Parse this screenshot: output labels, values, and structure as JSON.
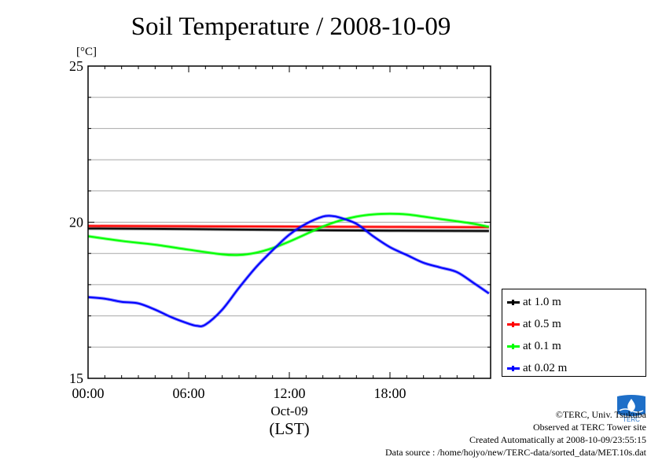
{
  "title": "Soil Temperature / 2008-10-09",
  "chart_data": {
    "type": "line",
    "title": "Soil Temperature / 2008-10-09",
    "ylabel": "[°C]",
    "ylim": [
      15,
      25
    ],
    "xlim": [
      0,
      24
    ],
    "yticks": [
      15,
      20,
      25
    ],
    "ytick_labels": [
      "15",
      "20",
      "25"
    ],
    "xticks": [
      0,
      6,
      12,
      18
    ],
    "xtick_labels": [
      "00:00",
      "06:00",
      "12:00",
      "18:00"
    ],
    "date_label": "Oct-09",
    "xlabel": "(LST)",
    "grid": "horizontal",
    "legend_position": "right",
    "series": [
      {
        "name": "at 1.0 m",
        "color": "#000000",
        "x": [
          0,
          6,
          12,
          18,
          23.9
        ],
        "y": [
          19.8,
          19.78,
          19.75,
          19.73,
          19.72
        ]
      },
      {
        "name": "at 0.5 m",
        "color": "#ff0000",
        "x": [
          0,
          6,
          12,
          18,
          23.9
        ],
        "y": [
          19.88,
          19.87,
          19.86,
          19.85,
          19.84
        ]
      },
      {
        "name": "at 0.1 m",
        "color": "#00ff00",
        "x": [
          0,
          2,
          4,
          6,
          8,
          9,
          10,
          11,
          12,
          13,
          14,
          15,
          16,
          17,
          18,
          19,
          20,
          21,
          22,
          23,
          23.9
        ],
        "y": [
          19.55,
          19.4,
          19.28,
          19.12,
          18.97,
          18.95,
          19.02,
          19.17,
          19.38,
          19.62,
          19.86,
          20.05,
          20.18,
          20.25,
          20.27,
          20.25,
          20.18,
          20.1,
          20.03,
          19.95,
          19.85
        ]
      },
      {
        "name": "at 0.02 m",
        "color": "#0000ff",
        "x": [
          0,
          1,
          2,
          3,
          4,
          5,
          6,
          6.5,
          7,
          8,
          9,
          10,
          11,
          12,
          13,
          14,
          14.5,
          15,
          16,
          17,
          18,
          19,
          20,
          21,
          22,
          23,
          23.9
        ],
        "y": [
          17.6,
          17.55,
          17.45,
          17.4,
          17.2,
          16.95,
          16.75,
          16.68,
          16.72,
          17.2,
          17.9,
          18.55,
          19.1,
          19.6,
          19.95,
          20.18,
          20.2,
          20.15,
          19.95,
          19.55,
          19.2,
          18.95,
          18.7,
          18.55,
          18.4,
          18.05,
          17.72
        ]
      }
    ]
  },
  "credits": {
    "copyright": "©TERC, Univ. Tsukuba",
    "observed": "Observed at TERC Tower site",
    "created": "Created Automatically at 2008-10-09/23:55:15",
    "source": "Data source : /home/hojyo/new/TERC-data/sorted_data/MET.10s.dat"
  },
  "logo": {
    "name": "terc-logo",
    "text": "TERC",
    "color": "#1e6fc8"
  }
}
